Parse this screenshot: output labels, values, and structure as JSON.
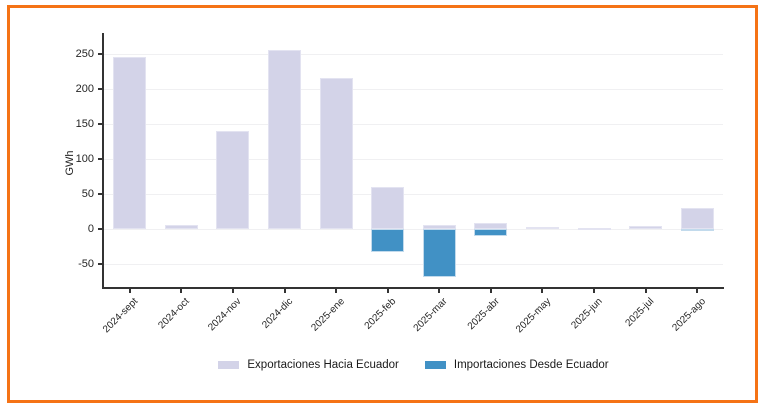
{
  "window": {
    "background": "#FFFFFF",
    "frame_border_color": "#F57316"
  },
  "chart_data": {
    "type": "bar",
    "title": "",
    "xlabel": "",
    "ylabel": "GWh",
    "categories": [
      "2024-sept",
      "2024-oct",
      "2024-nov",
      "2024-dic",
      "2025-ene",
      "2025-feb",
      "2025-mar",
      "2025-abr",
      "2025-may",
      "2025-jun",
      "2025-jul",
      "2025-ago"
    ],
    "series": [
      {
        "name": "Exportaciones Hacia Ecuador",
        "color": "#D3D3E8",
        "edge_color": "#E3E3F1",
        "values": [
          245,
          5,
          140,
          255,
          215,
          60,
          5,
          8,
          3,
          1.5,
          4,
          30
        ]
      },
      {
        "name": "Importaciones Desde Ecuador",
        "color": "#4191C5",
        "edge_color": "#C2DAEC",
        "values": [
          0,
          0,
          0,
          0,
          0,
          -33,
          -68,
          -10,
          0,
          0,
          0,
          -3
        ]
      }
    ],
    "yticks": [
      250,
      200,
      150,
      100,
      50,
      0,
      -50
    ],
    "ylim": [
      -83,
      280
    ],
    "grid": true,
    "legend_position": "bottom-center",
    "axis_color": "#333333",
    "grid_color": "#F0F0F2"
  }
}
